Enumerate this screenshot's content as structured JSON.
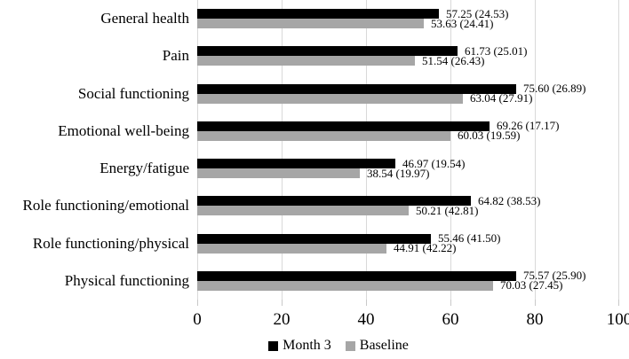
{
  "chart_data": {
    "type": "bar",
    "orientation": "horizontal",
    "title": "",
    "xlabel": "",
    "ylabel": "",
    "categories": [
      "General health",
      "Pain",
      "Social functioning",
      "Emotional well-being",
      "Energy/fatigue",
      "Role functioning/emotional",
      "Role functioning/physical",
      "Physical functioning"
    ],
    "series": [
      {
        "name": "Month 3",
        "color": "#000000",
        "values": [
          57.25,
          61.73,
          75.6,
          69.26,
          46.97,
          64.82,
          55.46,
          75.57
        ],
        "sd": [
          24.53,
          25.01,
          26.89,
          17.17,
          19.54,
          38.53,
          41.5,
          25.9
        ],
        "data_labels": [
          "57.25 (24.53)",
          "61.73 (25.01)",
          "75.60 (26.89)",
          "69.26 (17.17)",
          "46.97 (19.54)",
          "64.82 (38.53)",
          "55.46 (41.50)",
          "75.57 (25.90)"
        ]
      },
      {
        "name": "Baseline",
        "color": "#a6a6a6",
        "values": [
          53.63,
          51.54,
          63.04,
          60.03,
          38.54,
          50.21,
          44.91,
          70.03
        ],
        "sd": [
          24.41,
          26.43,
          27.91,
          19.59,
          19.97,
          42.81,
          42.22,
          27.45
        ],
        "data_labels": [
          "53.63 (24.41)",
          "51.54 (26.43)",
          "63.04 (27.91)",
          "60.03 (19.59)",
          "38.54 (19.97)",
          "50.21 (42.81)",
          "44.91 (42.22)",
          "70.03 (27.45)"
        ]
      }
    ],
    "xlim": [
      0,
      100
    ],
    "x_ticks": [
      0,
      20,
      40,
      60,
      80,
      100
    ],
    "x_tick_labels": [
      "0",
      "20",
      "40",
      "60",
      "80",
      "100"
    ],
    "grid": true,
    "gridline_color": "#d9d9d9",
    "legend_position": "bottom",
    "value_label_format": "mean (SD)"
  }
}
